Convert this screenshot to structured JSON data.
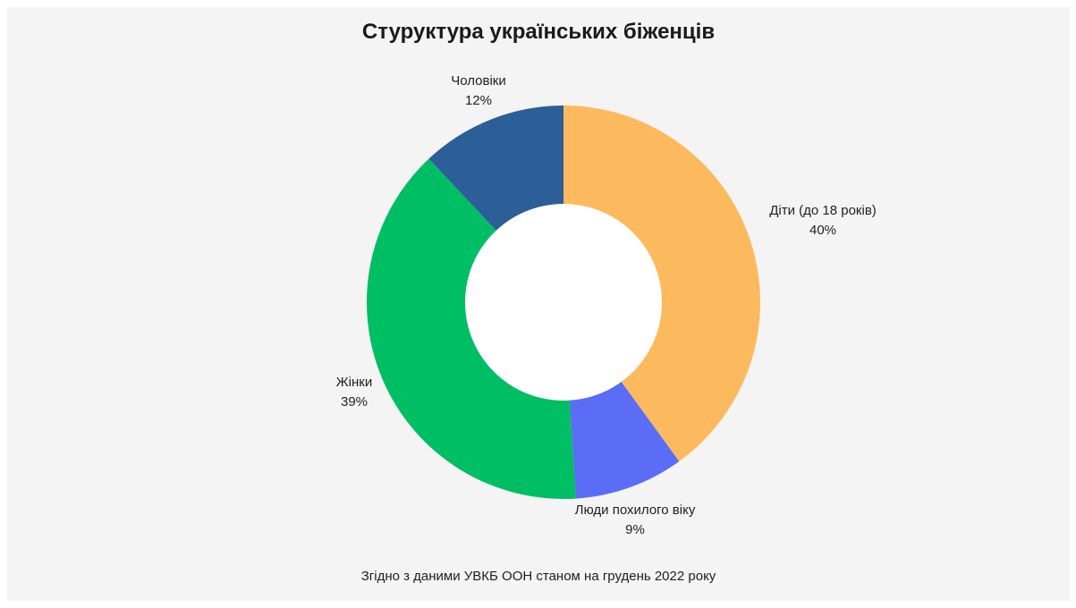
{
  "chart_data": {
    "type": "pie",
    "title": "Стуруктура українських біженців",
    "subtitle": "",
    "caption": "Згідно з даними УВКБ ООН станом на грудень 2022 року",
    "slices": [
      {
        "label": "Діти (до 18 років)",
        "value": 40,
        "value_label": "40%",
        "color": "#fdb95d"
      },
      {
        "label": "Люди похилого віку",
        "value": 9,
        "value_label": "9%",
        "color": "#5b6cf6"
      },
      {
        "label": "Жінки",
        "value": 39,
        "value_label": "39%",
        "color": "#00be64"
      },
      {
        "label": "Чоловіки",
        "value": 12,
        "value_label": "12%",
        "color": "#2c5e98"
      }
    ],
    "donut": true,
    "legend": "none",
    "start_angle": "top, clockwise"
  }
}
